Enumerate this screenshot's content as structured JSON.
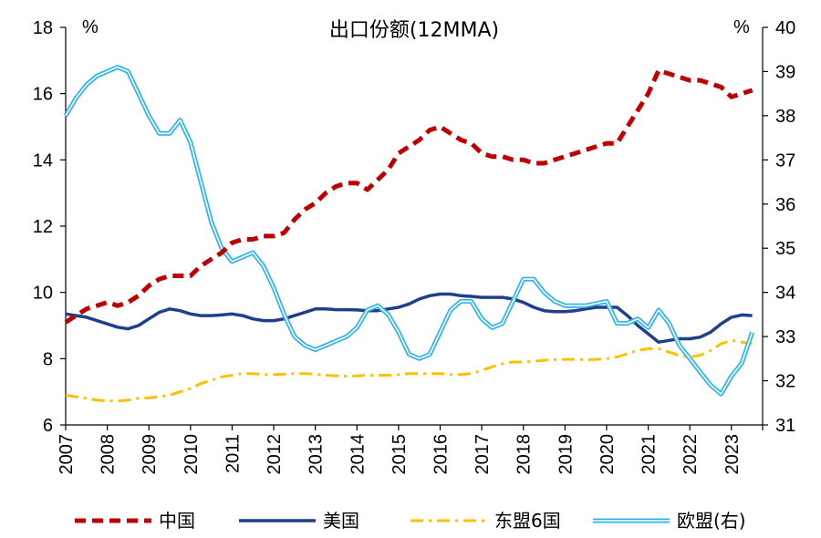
{
  "chart_data": {
    "type": "line",
    "title": "出口份额(12MMA)",
    "left_unit": "%",
    "right_unit": "%",
    "ylim_left": [
      6,
      18
    ],
    "yticks_left": [
      "6",
      "8",
      "10",
      "12",
      "14",
      "16",
      "18"
    ],
    "ylim_right": [
      31,
      40
    ],
    "yticks_right": [
      "31",
      "32",
      "33",
      "34",
      "35",
      "36",
      "37",
      "38",
      "39",
      "40"
    ],
    "xlim": [
      2007,
      2023.75
    ],
    "xticks": [
      "2007",
      "2008",
      "2009",
      "2010",
      "2011",
      "2012",
      "2013",
      "2014",
      "2015",
      "2016",
      "2017",
      "2018",
      "2019",
      "2020",
      "2021",
      "2022",
      "2023"
    ],
    "series": [
      {
        "name": "中国",
        "axis": "left",
        "color": "#C00000",
        "style": "dashed",
        "x": [
          2007.0,
          2007.25,
          2007.5,
          2007.75,
          2008.0,
          2008.25,
          2008.5,
          2008.75,
          2009.0,
          2009.25,
          2009.5,
          2009.75,
          2010.0,
          2010.25,
          2010.5,
          2010.75,
          2011.0,
          2011.25,
          2011.5,
          2011.75,
          2012.0,
          2012.25,
          2012.5,
          2012.75,
          2013.0,
          2013.25,
          2013.5,
          2013.75,
          2014.0,
          2014.25,
          2014.5,
          2014.75,
          2015.0,
          2015.25,
          2015.5,
          2015.75,
          2016.0,
          2016.25,
          2016.5,
          2016.75,
          2017.0,
          2017.25,
          2017.5,
          2017.75,
          2018.0,
          2018.25,
          2018.5,
          2018.75,
          2019.0,
          2019.25,
          2019.5,
          2019.75,
          2020.0,
          2020.25,
          2020.5,
          2020.75,
          2021.0,
          2021.25,
          2021.5,
          2021.75,
          2022.0,
          2022.25,
          2022.5,
          2022.75,
          2023.0,
          2023.25,
          2023.5
        ],
        "values": [
          9.1,
          9.3,
          9.5,
          9.6,
          9.7,
          9.6,
          9.7,
          9.9,
          10.2,
          10.4,
          10.5,
          10.5,
          10.5,
          10.8,
          11.0,
          11.2,
          11.5,
          11.6,
          11.6,
          11.7,
          11.7,
          11.8,
          12.2,
          12.5,
          12.7,
          13.0,
          13.2,
          13.3,
          13.3,
          13.1,
          13.4,
          13.7,
          14.2,
          14.4,
          14.6,
          14.9,
          15.0,
          14.8,
          14.6,
          14.5,
          14.2,
          14.1,
          14.1,
          14.0,
          14.0,
          13.9,
          13.9,
          14.0,
          14.1,
          14.2,
          14.3,
          14.4,
          14.5,
          14.5,
          15.0,
          15.5,
          16.0,
          16.7,
          16.6,
          16.5,
          16.4,
          16.4,
          16.3,
          16.2,
          15.9,
          16.0,
          16.1
        ]
      },
      {
        "name": "美国",
        "axis": "left",
        "color": "#1F3F8C",
        "style": "solid",
        "x": [
          2007.0,
          2007.25,
          2007.5,
          2007.75,
          2008.0,
          2008.25,
          2008.5,
          2008.75,
          2009.0,
          2009.25,
          2009.5,
          2009.75,
          2010.0,
          2010.25,
          2010.5,
          2010.75,
          2011.0,
          2011.25,
          2011.5,
          2011.75,
          2012.0,
          2012.25,
          2012.5,
          2012.75,
          2013.0,
          2013.25,
          2013.5,
          2013.75,
          2014.0,
          2014.25,
          2014.5,
          2014.75,
          2015.0,
          2015.25,
          2015.5,
          2015.75,
          2016.0,
          2016.25,
          2016.5,
          2016.75,
          2017.0,
          2017.25,
          2017.5,
          2017.75,
          2018.0,
          2018.25,
          2018.5,
          2018.75,
          2019.0,
          2019.25,
          2019.5,
          2019.75,
          2020.0,
          2020.25,
          2020.5,
          2020.75,
          2021.0,
          2021.25,
          2021.5,
          2021.75,
          2022.0,
          2022.25,
          2022.5,
          2022.75,
          2023.0,
          2023.25,
          2023.5
        ],
        "values": [
          9.35,
          9.3,
          9.25,
          9.15,
          9.05,
          8.95,
          8.9,
          9.0,
          9.2,
          9.4,
          9.5,
          9.45,
          9.35,
          9.3,
          9.3,
          9.32,
          9.35,
          9.3,
          9.2,
          9.15,
          9.15,
          9.2,
          9.3,
          9.4,
          9.5,
          9.5,
          9.48,
          9.48,
          9.47,
          9.45,
          9.45,
          9.5,
          9.55,
          9.65,
          9.8,
          9.9,
          9.95,
          9.95,
          9.9,
          9.88,
          9.85,
          9.85,
          9.85,
          9.8,
          9.7,
          9.55,
          9.45,
          9.42,
          9.42,
          9.45,
          9.5,
          9.55,
          9.55,
          9.55,
          9.3,
          9.0,
          8.75,
          8.5,
          8.55,
          8.6,
          8.6,
          8.65,
          8.8,
          9.05,
          9.25,
          9.32,
          9.3
        ]
      },
      {
        "name": "东盟6国",
        "axis": "left",
        "color": "#FFC000",
        "style": "dash-dot",
        "x": [
          2007.0,
          2007.25,
          2007.5,
          2007.75,
          2008.0,
          2008.25,
          2008.5,
          2008.75,
          2009.0,
          2009.25,
          2009.5,
          2009.75,
          2010.0,
          2010.25,
          2010.5,
          2010.75,
          2011.0,
          2011.25,
          2011.5,
          2011.75,
          2012.0,
          2012.25,
          2012.5,
          2012.75,
          2013.0,
          2013.25,
          2013.5,
          2013.75,
          2014.0,
          2014.25,
          2014.5,
          2014.75,
          2015.0,
          2015.25,
          2015.5,
          2015.75,
          2016.0,
          2016.25,
          2016.5,
          2016.75,
          2017.0,
          2017.25,
          2017.5,
          2017.75,
          2018.0,
          2018.25,
          2018.5,
          2018.75,
          2019.0,
          2019.25,
          2019.5,
          2019.75,
          2020.0,
          2020.25,
          2020.5,
          2020.75,
          2021.0,
          2021.25,
          2021.5,
          2021.75,
          2022.0,
          2022.25,
          2022.5,
          2022.75,
          2023.0,
          2023.25,
          2023.5
        ],
        "values": [
          6.9,
          6.85,
          6.8,
          6.75,
          6.72,
          6.72,
          6.75,
          6.8,
          6.82,
          6.85,
          6.9,
          7.0,
          7.1,
          7.25,
          7.35,
          7.45,
          7.5,
          7.55,
          7.55,
          7.52,
          7.52,
          7.53,
          7.55,
          7.55,
          7.53,
          7.5,
          7.48,
          7.47,
          7.48,
          7.5,
          7.5,
          7.5,
          7.52,
          7.55,
          7.55,
          7.55,
          7.55,
          7.52,
          7.52,
          7.55,
          7.65,
          7.75,
          7.85,
          7.9,
          7.9,
          7.92,
          7.95,
          7.97,
          7.98,
          7.98,
          7.97,
          7.98,
          8.0,
          8.05,
          8.15,
          8.25,
          8.3,
          8.3,
          8.2,
          8.1,
          8.05,
          8.1,
          8.25,
          8.45,
          8.55,
          8.5,
          8.45
        ]
      },
      {
        "name": "欧盟(右)",
        "axis": "right",
        "color": "#2EB4E8",
        "style": "double",
        "x": [
          2007.0,
          2007.25,
          2007.5,
          2007.75,
          2008.0,
          2008.25,
          2008.5,
          2008.75,
          2009.0,
          2009.25,
          2009.5,
          2009.75,
          2010.0,
          2010.25,
          2010.5,
          2010.75,
          2011.0,
          2011.25,
          2011.5,
          2011.75,
          2012.0,
          2012.25,
          2012.5,
          2012.75,
          2013.0,
          2013.25,
          2013.5,
          2013.75,
          2014.0,
          2014.25,
          2014.5,
          2014.75,
          2015.0,
          2015.25,
          2015.5,
          2015.75,
          2016.0,
          2016.25,
          2016.5,
          2016.75,
          2017.0,
          2017.25,
          2017.5,
          2017.75,
          2018.0,
          2018.25,
          2018.5,
          2018.75,
          2019.0,
          2019.25,
          2019.5,
          2019.75,
          2020.0,
          2020.25,
          2020.5,
          2020.75,
          2021.0,
          2021.25,
          2021.5,
          2021.75,
          2022.0,
          2022.25,
          2022.5,
          2022.75,
          2023.0,
          2023.25,
          2023.5
        ],
        "values": [
          38.0,
          38.4,
          38.7,
          38.9,
          39.0,
          39.1,
          39.0,
          38.5,
          38.0,
          37.6,
          37.6,
          37.9,
          37.4,
          36.5,
          35.6,
          35.0,
          34.7,
          34.8,
          34.9,
          34.6,
          34.1,
          33.5,
          33.0,
          32.8,
          32.7,
          32.8,
          32.9,
          33.0,
          33.2,
          33.6,
          33.7,
          33.5,
          33.1,
          32.6,
          32.5,
          32.6,
          33.1,
          33.6,
          33.8,
          33.8,
          33.4,
          33.2,
          33.3,
          33.8,
          34.3,
          34.3,
          34.0,
          33.8,
          33.7,
          33.7,
          33.7,
          33.75,
          33.8,
          33.3,
          33.3,
          33.4,
          33.2,
          33.6,
          33.3,
          32.8,
          32.5,
          32.2,
          31.9,
          31.7,
          32.1,
          32.4,
          33.1
        ]
      }
    ],
    "legend": [
      "中国",
      "美国",
      "东盟6国",
      "欧盟(右)"
    ],
    "legend_position": "bottom"
  }
}
